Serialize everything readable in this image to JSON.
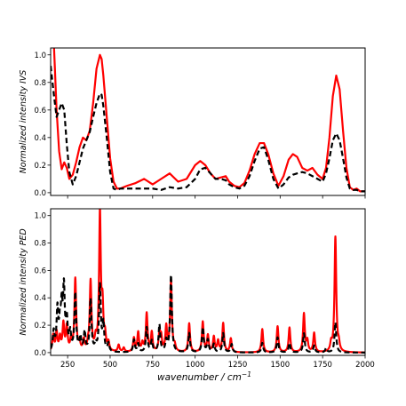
{
  "figure": {
    "x_axis_label": "wavenumber / cm",
    "x_axis_label_superscript": "−1"
  },
  "chart_data": [
    {
      "type": "line",
      "ylabel": "Normalized intensity IVS",
      "xlim": [
        150,
        2000
      ],
      "ylim": [
        -0.02,
        1.05
      ],
      "xticks": [
        250,
        500,
        750,
        1000,
        1250,
        1500,
        1750,
        2000
      ],
      "xtick_labels_shown": false,
      "yticks": [
        0.0,
        0.2,
        0.4,
        0.6,
        0.8,
        1.0
      ],
      "ytick_labels": [
        "0.0",
        "0.2",
        "0.4",
        "0.6",
        "0.8",
        "1.0"
      ],
      "grid": false,
      "legend": "none",
      "series": [
        {
          "color": "#ff0000",
          "dash": "solid",
          "x": [
            150,
            170,
            185,
            200,
            215,
            230,
            245,
            260,
            280,
            300,
            320,
            340,
            360,
            380,
            400,
            420,
            440,
            450,
            460,
            480,
            500,
            520,
            540,
            560,
            580,
            600,
            650,
            700,
            750,
            800,
            850,
            900,
            950,
            1000,
            1030,
            1060,
            1090,
            1120,
            1150,
            1180,
            1200,
            1230,
            1260,
            1290,
            1320,
            1350,
            1380,
            1405,
            1430,
            1460,
            1490,
            1520,
            1550,
            1575,
            1600,
            1630,
            1660,
            1690,
            1720,
            1750,
            1770,
            1790,
            1810,
            1830,
            1850,
            1870,
            1890,
            1910,
            1930,
            1950,
            1970,
            2000
          ],
          "y": [
            1.12,
            1.05,
            0.6,
            0.3,
            0.17,
            0.22,
            0.18,
            0.1,
            0.13,
            0.22,
            0.33,
            0.4,
            0.38,
            0.45,
            0.65,
            0.9,
            1.0,
            0.97,
            0.85,
            0.55,
            0.25,
            0.08,
            0.03,
            0.03,
            0.04,
            0.05,
            0.07,
            0.1,
            0.06,
            0.1,
            0.14,
            0.08,
            0.1,
            0.2,
            0.23,
            0.2,
            0.14,
            0.1,
            0.11,
            0.12,
            0.08,
            0.05,
            0.04,
            0.07,
            0.16,
            0.28,
            0.36,
            0.36,
            0.28,
            0.14,
            0.05,
            0.12,
            0.24,
            0.28,
            0.26,
            0.18,
            0.16,
            0.18,
            0.13,
            0.1,
            0.18,
            0.4,
            0.7,
            0.85,
            0.75,
            0.45,
            0.18,
            0.04,
            0.02,
            0.03,
            0.01,
            0.01
          ]
        },
        {
          "color": "#000000",
          "dash": "dashed",
          "x": [
            150,
            170,
            185,
            200,
            215,
            230,
            245,
            260,
            280,
            300,
            320,
            340,
            360,
            380,
            400,
            420,
            440,
            450,
            460,
            480,
            500,
            520,
            540,
            560,
            580,
            600,
            650,
            700,
            750,
            800,
            850,
            900,
            950,
            1000,
            1030,
            1060,
            1090,
            1120,
            1150,
            1180,
            1200,
            1230,
            1260,
            1290,
            1320,
            1350,
            1380,
            1405,
            1430,
            1460,
            1490,
            1520,
            1550,
            1575,
            1600,
            1630,
            1660,
            1690,
            1720,
            1750,
            1770,
            1790,
            1810,
            1830,
            1850,
            1870,
            1890,
            1910,
            1930,
            1950,
            1970,
            2000
          ],
          "y": [
            0.92,
            0.7,
            0.55,
            0.6,
            0.65,
            0.6,
            0.35,
            0.15,
            0.06,
            0.12,
            0.22,
            0.32,
            0.38,
            0.44,
            0.55,
            0.65,
            0.72,
            0.71,
            0.63,
            0.4,
            0.15,
            0.03,
            0.02,
            0.03,
            0.03,
            0.03,
            0.03,
            0.03,
            0.03,
            0.02,
            0.04,
            0.03,
            0.04,
            0.1,
            0.17,
            0.18,
            0.14,
            0.1,
            0.1,
            0.09,
            0.06,
            0.04,
            0.03,
            0.05,
            0.12,
            0.23,
            0.32,
            0.33,
            0.24,
            0.1,
            0.03,
            0.06,
            0.11,
            0.13,
            0.14,
            0.15,
            0.14,
            0.12,
            0.1,
            0.08,
            0.14,
            0.25,
            0.38,
            0.43,
            0.38,
            0.25,
            0.11,
            0.03,
            0.02,
            0.02,
            0.01,
            0.01
          ]
        }
      ]
    },
    {
      "type": "line",
      "ylabel": "Normalized intensity PED",
      "xlim": [
        150,
        2000
      ],
      "ylim": [
        -0.02,
        1.05
      ],
      "xticks": [
        250,
        500,
        750,
        1000,
        1250,
        1500,
        1750,
        2000
      ],
      "xtick_labels": [
        "250",
        "500",
        "750",
        "1000",
        "1250",
        "1500",
        "1750",
        "2000"
      ],
      "yticks": [
        0.0,
        0.2,
        0.4,
        0.6,
        0.8,
        1.0
      ],
      "ytick_labels": [
        "0.0",
        "0.2",
        "0.4",
        "0.6",
        "0.8",
        "1.0"
      ],
      "grid": false,
      "legend": "none",
      "peak_width": 6,
      "series": [
        {
          "color": "#ff0000",
          "dash": "solid",
          "peaks": [
            [
              165,
              0.12
            ],
            [
              185,
              0.14
            ],
            [
              205,
              0.1
            ],
            [
              225,
              0.2
            ],
            [
              245,
              0.18
            ],
            [
              270,
              0.08
            ],
            [
              295,
              0.53
            ],
            [
              320,
              0.06
            ],
            [
              345,
              0.08
            ],
            [
              370,
              0.04
            ],
            [
              385,
              0.51
            ],
            [
              415,
              0.08
            ],
            [
              440,
              1.0
            ],
            [
              455,
              0.3
            ],
            [
              470,
              0.1
            ],
            [
              490,
              0.06
            ],
            [
              550,
              0.05
            ],
            [
              580,
              0.03
            ],
            [
              640,
              0.1
            ],
            [
              665,
              0.14
            ],
            [
              690,
              0.06
            ],
            [
              715,
              0.28
            ],
            [
              745,
              0.14
            ],
            [
              790,
              0.13
            ],
            [
              800,
              0.1
            ],
            [
              830,
              0.18
            ],
            [
              858,
              0.52
            ],
            [
              880,
              0.04
            ],
            [
              965,
              0.21
            ],
            [
              1045,
              0.22
            ],
            [
              1075,
              0.12
            ],
            [
              1110,
              0.11
            ],
            [
              1135,
              0.08
            ],
            [
              1165,
              0.21
            ],
            [
              1210,
              0.1
            ],
            [
              1395,
              0.17
            ],
            [
              1485,
              0.19
            ],
            [
              1555,
              0.18
            ],
            [
              1640,
              0.28
            ],
            [
              1660,
              0.08
            ],
            [
              1700,
              0.14
            ],
            [
              1800,
              0.06
            ],
            [
              1825,
              0.84
            ],
            [
              1845,
              0.05
            ]
          ]
        },
        {
          "color": "#000000",
          "dash": "dashed",
          "peaks": [
            [
              168,
              0.14
            ],
            [
              190,
              0.3
            ],
            [
              205,
              0.18
            ],
            [
              215,
              0.28
            ],
            [
              228,
              0.44
            ],
            [
              245,
              0.22
            ],
            [
              265,
              0.13
            ],
            [
              295,
              0.42
            ],
            [
              325,
              0.1
            ],
            [
              350,
              0.14
            ],
            [
              385,
              0.38
            ],
            [
              415,
              0.05
            ],
            [
              440,
              0.48
            ],
            [
              460,
              0.2
            ],
            [
              490,
              0.06
            ],
            [
              640,
              0.09
            ],
            [
              665,
              0.06
            ],
            [
              715,
              0.18
            ],
            [
              745,
              0.08
            ],
            [
              790,
              0.2
            ],
            [
              830,
              0.08
            ],
            [
              858,
              0.56
            ],
            [
              965,
              0.14
            ],
            [
              1045,
              0.18
            ],
            [
              1075,
              0.09
            ],
            [
              1110,
              0.06
            ],
            [
              1165,
              0.14
            ],
            [
              1215,
              0.06
            ],
            [
              1395,
              0.07
            ],
            [
              1485,
              0.11
            ],
            [
              1555,
              0.07
            ],
            [
              1640,
              0.14
            ],
            [
              1700,
              0.05
            ],
            [
              1770,
              0.03
            ],
            [
              1825,
              0.22
            ]
          ]
        }
      ]
    }
  ]
}
